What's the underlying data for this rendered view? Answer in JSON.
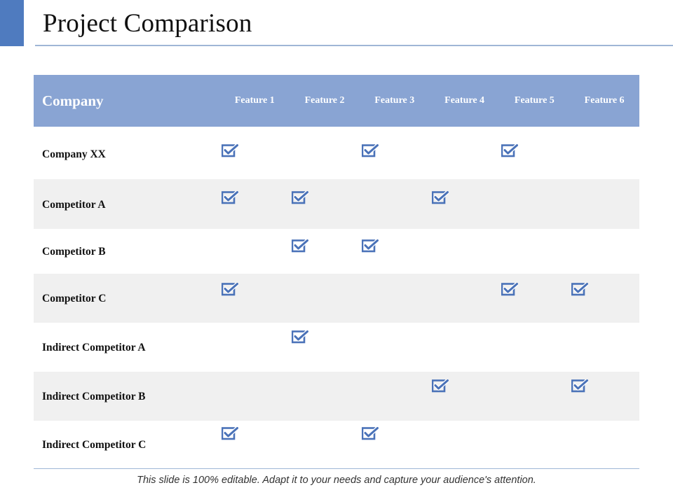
{
  "slide": {
    "title": "Project Comparison",
    "footer": "This slide is 100% editable. Adapt it to your needs and capture your audience's attention."
  },
  "table": {
    "company_header": "Company",
    "features": [
      "Feature 1",
      "Feature 2",
      "Feature 3",
      "Feature 4",
      "Feature 5",
      "Feature 6"
    ],
    "rows": [
      {
        "name": "Company XX",
        "checks": [
          true,
          false,
          true,
          false,
          true,
          false
        ]
      },
      {
        "name": "Competitor A",
        "checks": [
          true,
          true,
          false,
          true,
          false,
          false
        ]
      },
      {
        "name": "Competitor B",
        "checks": [
          false,
          true,
          true,
          false,
          false,
          false
        ]
      },
      {
        "name": "Competitor C",
        "checks": [
          true,
          false,
          false,
          false,
          true,
          true
        ]
      },
      {
        "name": "Indirect Competitor A",
        "checks": [
          false,
          true,
          false,
          false,
          false,
          false
        ]
      },
      {
        "name": "Indirect Competitor B",
        "checks": [
          false,
          false,
          false,
          true,
          false,
          true
        ]
      },
      {
        "name": "Indirect Competitor C",
        "checks": [
          true,
          false,
          true,
          false,
          false,
          false
        ]
      }
    ]
  },
  "colors": {
    "accent": "#4f7bbf",
    "header_bg": "#89a4d3",
    "check": "#4a72b8",
    "row_shade": "#f0f0f0"
  },
  "icons": {
    "check": "checkbox-checked-icon"
  }
}
